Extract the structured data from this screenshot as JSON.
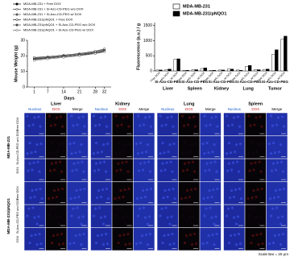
{
  "chart_data": [
    {
      "type": "line",
      "x_label": "Days",
      "y_label": "Mouse Weight (g)",
      "x": [
        1,
        7,
        14,
        21,
        28,
        32
      ],
      "xlim": [
        -2,
        35
      ],
      "xticks": [
        1,
        7,
        14,
        21,
        28,
        32
      ],
      "ylim": [
        0,
        30
      ],
      "yticks": [
        0,
        10,
        20,
        30
      ],
      "series": [
        {
          "name": "MDA-MB-231 + Free DOX",
          "color": "#000000",
          "values": [
            18,
            18.5,
            19.5,
            20.5,
            21.5,
            23
          ]
        },
        {
          "name": "MDA-MB-231 + Si-Azo-CD-PEG w/o DOX",
          "color": "#333333",
          "values": [
            18.5,
            19,
            20,
            21,
            22.5,
            24
          ]
        },
        {
          "name": "MDA-MB-231 + Si-Azo-CD-PEG w/ DOX",
          "color": "#555555",
          "values": [
            17.5,
            18.5,
            19.5,
            20.5,
            22,
            23.5
          ]
        },
        {
          "name": "MDA-MB-231/pNQO1 + Free DOX",
          "color": "#222222",
          "values": [
            19,
            19.5,
            20.5,
            21.5,
            23,
            24.5
          ]
        },
        {
          "name": "MDA-MB-231/pNQO1 + Si-Azo-CD-PEG w/o DOX",
          "color": "#444444",
          "values": [
            18,
            19,
            20,
            21,
            22,
            23.5
          ]
        },
        {
          "name": "MDA-MB-231/pNQO1 + Si-Azo-CD-PEG w/ DOX",
          "color": "#666666",
          "values": [
            17,
            18,
            19,
            20,
            21.5,
            22.5
          ]
        }
      ]
    },
    {
      "type": "bar",
      "y_label": "Fluorescence (a.u.) / g",
      "categories": [
        "Free DOX",
        "w/o DOX",
        "w/ DOX",
        "Free DOX",
        "w/o DOX",
        "w/ DOX",
        "Free DOX",
        "w/o DOX",
        "w/ DOX",
        "Free DOX",
        "w/o DOX",
        "w/ DOX",
        "Free DOX",
        "w/o DOX",
        "w/ DOX"
      ],
      "groups": [
        "Liver",
        "Spleen",
        "Kidney",
        "Lung",
        "Tumor"
      ],
      "group_sublabel": "Si-Azo-CD-PEG",
      "ylim": [
        0,
        1600
      ],
      "yticks": [
        0,
        500,
        1000,
        1500
      ],
      "series": [
        {
          "name": "MDA-MB-231",
          "color": "#ffffff",
          "values": [
            30,
            40,
            380,
            20,
            40,
            80,
            20,
            30,
            60,
            30,
            150,
            40,
            50,
            550,
            1050
          ]
        },
        {
          "name": "MDA-MB-231/pNQO1",
          "color": "#000000",
          "values": [
            30,
            60,
            400,
            20,
            40,
            100,
            20,
            30,
            60,
            20,
            180,
            40,
            60,
            700,
            1150
          ]
        }
      ]
    }
  ],
  "microscopy": {
    "organs": [
      "Liver",
      "Kidney",
      "Lung",
      "Spleen"
    ],
    "channels": [
      "Nucleus",
      "DOX",
      "Merge"
    ],
    "groups": [
      "MDA-MB-231",
      "MDA-MB-231/pNQO1"
    ],
    "rows": [
      "Free DOX",
      "Si-Azo-CD-PEG w/o DOX",
      "DOX"
    ],
    "scale_bar": "Scale Bar = 20 μm"
  }
}
